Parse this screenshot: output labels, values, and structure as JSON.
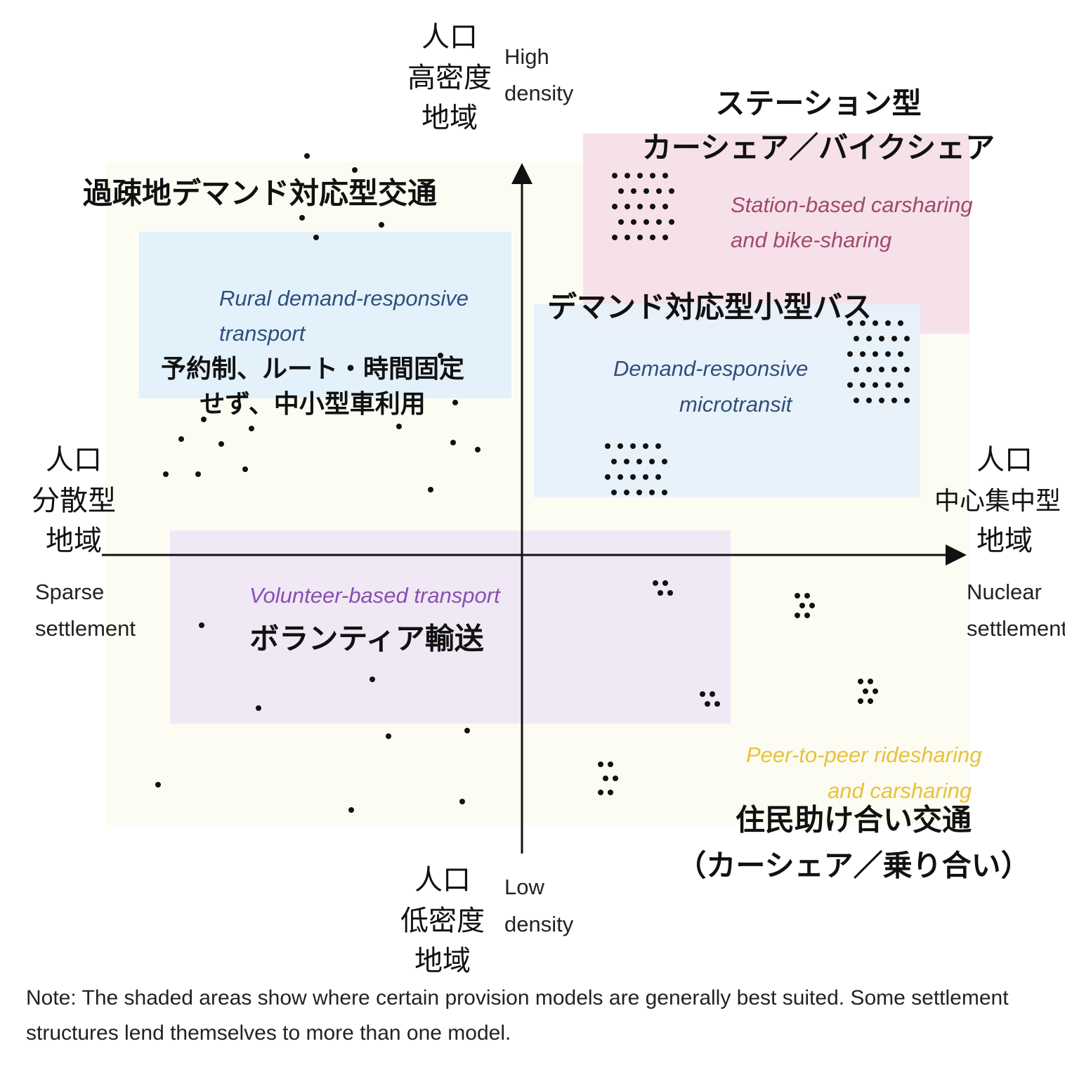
{
  "axes": {
    "top": {
      "ja": [
        "人口",
        "高密度",
        "地域"
      ],
      "en": [
        "High",
        "density"
      ]
    },
    "bottom": {
      "ja": [
        "人口",
        "低密度",
        "地域"
      ],
      "en": [
        "Low",
        "density"
      ]
    },
    "left": {
      "ja": [
        "人口",
        "分散型",
        "地域"
      ],
      "en": [
        "Sparse",
        "settlement"
      ]
    },
    "right": {
      "ja": [
        "人口",
        "中心集中型",
        "地域"
      ],
      "en": [
        "Nuclear",
        "settlement"
      ]
    }
  },
  "regions": [
    {
      "ja": [
        "過疎地デマンド対応型交通"
      ],
      "en": [
        "Rural demand-responsive",
        "transport"
      ],
      "detail": [
        "予約制、ルート・時間固定",
        "せず、中小型車利用"
      ]
    },
    {
      "ja": [
        "ステーション型",
        "カーシェア／バイクシェア"
      ],
      "en": [
        "Station-based carsharing",
        "and bike-sharing"
      ]
    },
    {
      "ja": [
        "デマンド対応型小型バス"
      ],
      "en": [
        "Demand-responsive",
        "microtransit"
      ]
    },
    {
      "ja": [
        "ボランティア輸送"
      ],
      "en": [
        "Volunteer-based transport"
      ]
    },
    {
      "ja": [
        "住民助け合い交通",
        "（カーシェア／乗り合い）"
      ],
      "en": [
        "Peer-to-peer ridesharing",
        "and carsharing"
      ]
    }
  ],
  "note": [
    "Note: The shaded areas show where certain provision models are generally best suited. Some settlement",
    "structures lend themselves to more than one model."
  ]
}
